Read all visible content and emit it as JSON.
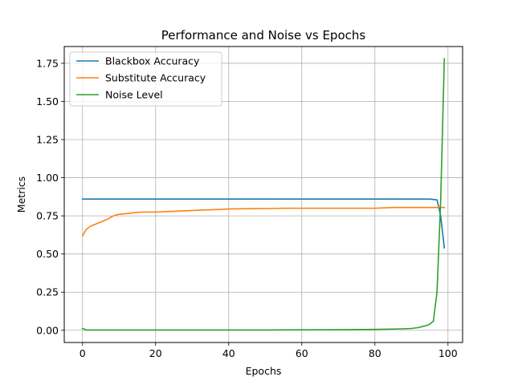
{
  "chart_data": {
    "type": "line",
    "title": "Performance and Noise vs Epochs",
    "xlabel": "Epochs",
    "ylabel": "Metrics",
    "xlim": [
      -5,
      104
    ],
    "ylim": [
      -0.08,
      1.86
    ],
    "xticks": [
      0,
      20,
      40,
      60,
      80,
      100
    ],
    "yticks": [
      0.0,
      0.25,
      0.5,
      0.75,
      1.0,
      1.25,
      1.5,
      1.75
    ],
    "ytick_labels": [
      "0.00",
      "0.25",
      "0.50",
      "0.75",
      "1.00",
      "1.25",
      "1.50",
      "1.75"
    ],
    "grid": true,
    "legend_position": "top-left",
    "series": [
      {
        "name": "Blackbox Accuracy",
        "color": "#1f77b4",
        "x": [
          0,
          10,
          20,
          30,
          40,
          50,
          60,
          70,
          80,
          90,
          95,
          97,
          98,
          99
        ],
        "y": [
          0.86,
          0.86,
          0.86,
          0.86,
          0.86,
          0.86,
          0.86,
          0.86,
          0.86,
          0.86,
          0.86,
          0.855,
          0.75,
          0.54
        ]
      },
      {
        "name": "Substitute Accuracy",
        "color": "#ff7f0e",
        "x": [
          0,
          1,
          2,
          3,
          4,
          5,
          6,
          7,
          8,
          9,
          10,
          12,
          14,
          16,
          18,
          20,
          25,
          30,
          35,
          40,
          45,
          50,
          55,
          60,
          65,
          70,
          75,
          80,
          85,
          90,
          95,
          99
        ],
        "y": [
          0.62,
          0.66,
          0.68,
          0.69,
          0.7,
          0.71,
          0.72,
          0.73,
          0.745,
          0.755,
          0.76,
          0.765,
          0.77,
          0.775,
          0.775,
          0.775,
          0.78,
          0.785,
          0.79,
          0.795,
          0.797,
          0.798,
          0.8,
          0.8,
          0.8,
          0.8,
          0.8,
          0.8,
          0.805,
          0.805,
          0.805,
          0.805
        ]
      },
      {
        "name": "Noise Level",
        "color": "#2ca02c",
        "x": [
          0,
          1,
          2,
          10,
          20,
          30,
          40,
          50,
          60,
          70,
          80,
          85,
          88,
          90,
          92,
          93,
          94,
          95,
          96,
          97,
          98,
          99
        ],
        "y": [
          0.012,
          0.002,
          0.002,
          0.002,
          0.002,
          0.002,
          0.002,
          0.002,
          0.003,
          0.004,
          0.006,
          0.008,
          0.01,
          0.012,
          0.018,
          0.025,
          0.03,
          0.04,
          0.06,
          0.25,
          0.85,
          1.78
        ]
      }
    ]
  }
}
